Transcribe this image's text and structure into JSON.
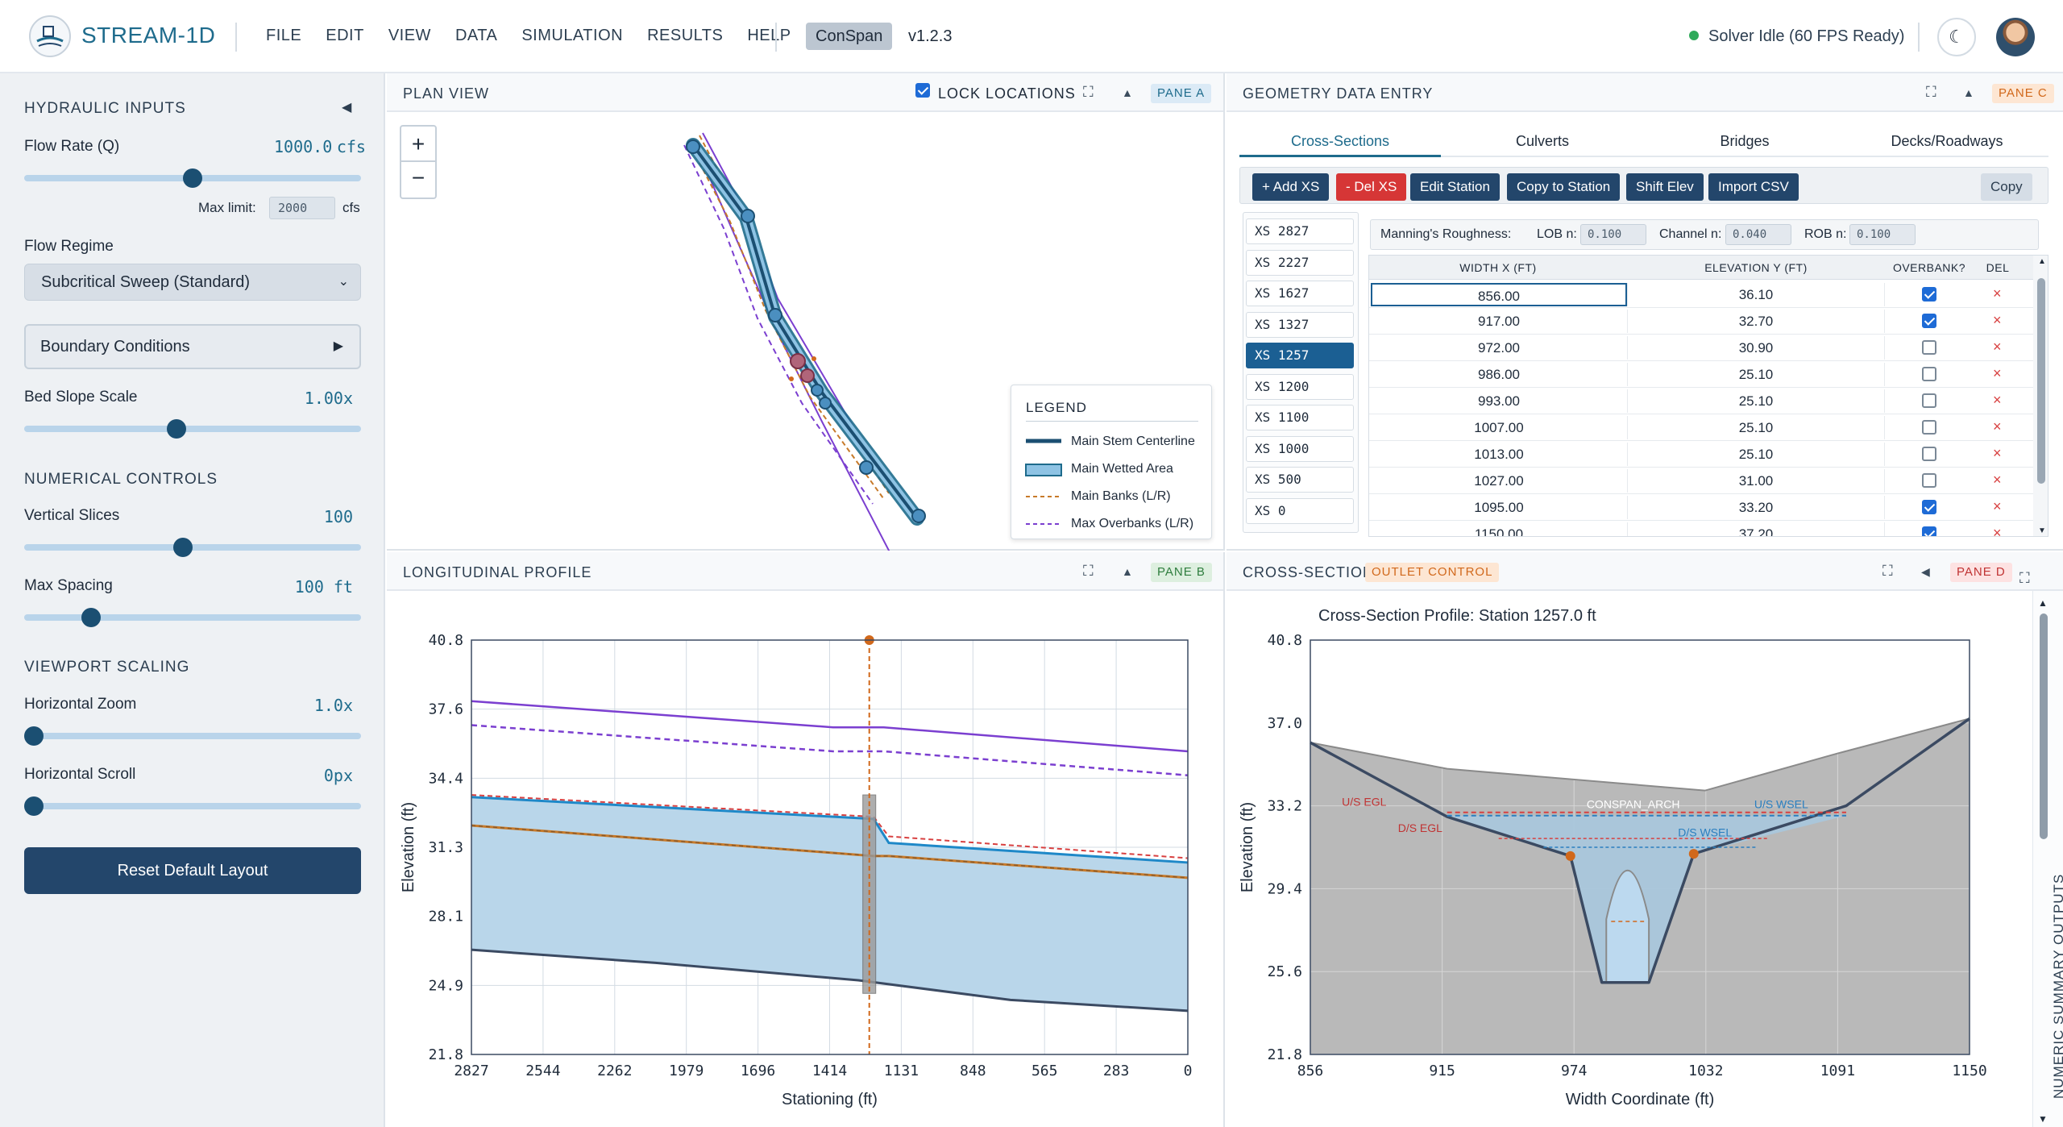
{
  "topbar": {
    "brand": "STREAM-1D",
    "menu": [
      "FILE",
      "EDIT",
      "VIEW",
      "DATA",
      "SIMULATION",
      "RESULTS",
      "HELP"
    ],
    "mode_badge": "ConSpan",
    "version": "v1.2.3",
    "status": "Solver Idle (60 FPS Ready)"
  },
  "left": {
    "hydraulic_title": "HYDRAULIC INPUTS",
    "collapse_icon": "◀",
    "flow_rate_label": "Flow Rate (Q)",
    "flow_rate_value": "1000.0",
    "flow_rate_unit": "cfs",
    "flow_rate_fraction": 0.5,
    "max_limit_label": "Max limit:",
    "max_limit_value": "2000",
    "max_limit_unit": "cfs",
    "flow_regime_label": "Flow Regime",
    "flow_regime_value": "Subcritical Sweep (Standard)",
    "boundary_label": "Boundary Conditions",
    "bed_slope_label": "Bed Slope Scale",
    "bed_slope_value": "1.00x",
    "bed_slope_fraction": 0.45,
    "numerical_title": "NUMERICAL CONTROLS",
    "vertical_slices_label": "Vertical Slices",
    "vertical_slices_value": "100",
    "vertical_slices_fraction": 0.47,
    "max_spacing_label": "Max Spacing",
    "max_spacing_value": "100 ft",
    "max_spacing_fraction": 0.18,
    "viewport_title": "VIEWPORT SCALING",
    "hzoom_label": "Horizontal Zoom",
    "hzoom_value": "1.0x",
    "hzoom_fraction": 0.0,
    "hscroll_label": "Horizontal Scroll",
    "hscroll_value": "0px",
    "hscroll_fraction": 0.0,
    "reset_label": "Reset Default Layout"
  },
  "plan": {
    "title": "PLAN VIEW",
    "lock_label": "LOCK LOCATIONS",
    "lock_checked": true,
    "pane_tag": "PANE A",
    "zoom_in": "+",
    "zoom_out": "−",
    "legend_title": "LEGEND",
    "legend": [
      "Main Stem Centerline",
      "Main Wetted Area",
      "Main Banks (L/R)",
      "Max Overbanks (L/R)"
    ]
  },
  "geometry": {
    "title": "GEOMETRY DATA ENTRY",
    "pane_tag": "PANE C",
    "tabs": [
      "Cross-Sections",
      "Culverts",
      "Bridges",
      "Decks/Roadways"
    ],
    "active_tab": "Cross-Sections",
    "buttons": [
      "+ Add XS",
      "- Del XS",
      "Edit Station",
      "Copy to Station",
      "Shift Elev",
      "Import CSV"
    ],
    "copy_label": "Copy",
    "xs_list": [
      "XS 2827",
      "XS 2227",
      "XS 1627",
      "XS 1327",
      "XS 1257",
      "XS 1200",
      "XS 1100",
      "XS 1000",
      "XS 500",
      "XS 0"
    ],
    "selected_xs": "XS 1257",
    "roughness_label": "Manning's Roughness:",
    "lob_label": "LOB n:",
    "lob_value": "0.100",
    "channel_label": "Channel n:",
    "channel_value": "0.040",
    "rob_label": "ROB n:",
    "rob_value": "0.100",
    "columns": [
      "WIDTH X (FT)",
      "ELEVATION Y (FT)",
      "OVERBANK?",
      "DEL"
    ],
    "rows": [
      {
        "x": "856.00",
        "y": "36.10",
        "ob": true
      },
      {
        "x": "917.00",
        "y": "32.70",
        "ob": true
      },
      {
        "x": "972.00",
        "y": "30.90",
        "ob": false
      },
      {
        "x": "986.00",
        "y": "25.10",
        "ob": false
      },
      {
        "x": "993.00",
        "y": "25.10",
        "ob": false
      },
      {
        "x": "1007.00",
        "y": "25.10",
        "ob": false
      },
      {
        "x": "1013.00",
        "y": "25.10",
        "ob": false
      },
      {
        "x": "1027.00",
        "y": "31.00",
        "ob": false
      },
      {
        "x": "1095.00",
        "y": "33.20",
        "ob": true
      },
      {
        "x": "1150.00",
        "y": "37.20",
        "ob": true
      }
    ],
    "del_glyph": "×"
  },
  "profile": {
    "title": "LONGITUDINAL PROFILE",
    "pane_tag": "PANE B"
  },
  "xsection": {
    "title": "CROSS-SECTION",
    "control_tag": "OUTLET CONTROL",
    "pane_tag": "PANE D",
    "side_label": "NUMERIC SUMMARY OUTPUTS"
  },
  "colors": {
    "accent": "#1e6b8c",
    "navy": "#23466b",
    "water": "#b9d6ea",
    "bank": "#c77a2a",
    "overbank": "#7b3fd0",
    "bed": "#3b4a62"
  },
  "chart_data": [
    {
      "type": "line",
      "chart": "longitudinal-profile",
      "xlabel": "Stationing (ft)",
      "ylabel": "Elevation (ft)",
      "xlim": [
        2827,
        0
      ],
      "ylim": [
        21.8,
        40.8
      ],
      "x_ticks": [
        "2827",
        "2544",
        "2262",
        "1979",
        "1696",
        "1414",
        "1131",
        "848",
        "565",
        "283",
        "0"
      ],
      "y_ticks": [
        "40.8",
        "37.6",
        "34.4",
        "31.3",
        "28.1",
        "24.9",
        "21.8"
      ],
      "structure_station": 1257,
      "series": [
        {
          "kind": "overbank-solid",
          "x": [
            2827,
            1400,
            1200,
            0
          ],
          "y": [
            38.0,
            36.8,
            36.8,
            35.7
          ]
        },
        {
          "kind": "overbank-dashed",
          "x": [
            2827,
            1400,
            1200,
            0
          ],
          "y": [
            36.9,
            35.7,
            35.7,
            34.6
          ]
        },
        {
          "kind": "egl",
          "x": [
            2827,
            1240,
            1180,
            0
          ],
          "y": [
            33.7,
            32.7,
            31.8,
            30.8
          ]
        },
        {
          "kind": "wsel",
          "x": [
            2827,
            1240,
            1180,
            0
          ],
          "y": [
            33.6,
            32.6,
            31.5,
            30.6
          ]
        },
        {
          "kind": "banks",
          "x": [
            2827,
            1240,
            1180,
            0
          ],
          "y": [
            32.3,
            30.9,
            30.9,
            29.9
          ]
        },
        {
          "kind": "bed",
          "x": [
            2827,
            2100,
            1300,
            700,
            0
          ],
          "y": [
            26.6,
            26.0,
            25.2,
            24.3,
            23.8
          ]
        }
      ]
    },
    {
      "type": "line",
      "chart": "cross-section",
      "title": "Cross-Section Profile: Station 1257.0 ft",
      "xlabel": "Width Coordinate (ft)",
      "ylabel": "Elevation (ft)",
      "xlim": [
        856,
        1150
      ],
      "ylim": [
        21.8,
        40.8
      ],
      "x_ticks": [
        "856",
        "915",
        "974",
        "1032",
        "1091",
        "1150"
      ],
      "y_ticks": [
        "40.8",
        "37.0",
        "33.2",
        "29.4",
        "25.6",
        "21.8"
      ],
      "ground": {
        "x": [
          856,
          917,
          972,
          986,
          1007,
          1027,
          1095,
          1150
        ],
        "y": [
          36.1,
          32.7,
          30.9,
          25.1,
          25.1,
          31.0,
          33.2,
          37.2
        ]
      },
      "overbank_top": {
        "x": [
          856,
          917,
          1032,
          1091,
          1150
        ],
        "y": [
          36.1,
          34.9,
          33.9,
          35.6,
          37.2
        ]
      },
      "bank_points": {
        "x": [
          972,
          1027
        ],
        "y": [
          30.9,
          31.0
        ]
      },
      "arch": {
        "x_left": 988,
        "x_right": 1007,
        "crown": 31.0,
        "springline": 25.1
      },
      "labels": [
        {
          "text": "U/S EGL",
          "x": 880,
          "y": 33.2
        },
        {
          "text": "CONSPAN_ARCH",
          "x": 1000,
          "y": 33.1
        },
        {
          "text": "U/S WSEL",
          "x": 1066,
          "y": 33.1
        },
        {
          "text": "D/S EGL",
          "x": 905,
          "y": 32.0
        },
        {
          "text": "D/S WSEL",
          "x": 1032,
          "y": 31.8
        }
      ],
      "us_egl": 32.9,
      "us_wsel": 32.75,
      "ds_egl": 31.7,
      "ds_wsel": 31.3
    }
  ]
}
